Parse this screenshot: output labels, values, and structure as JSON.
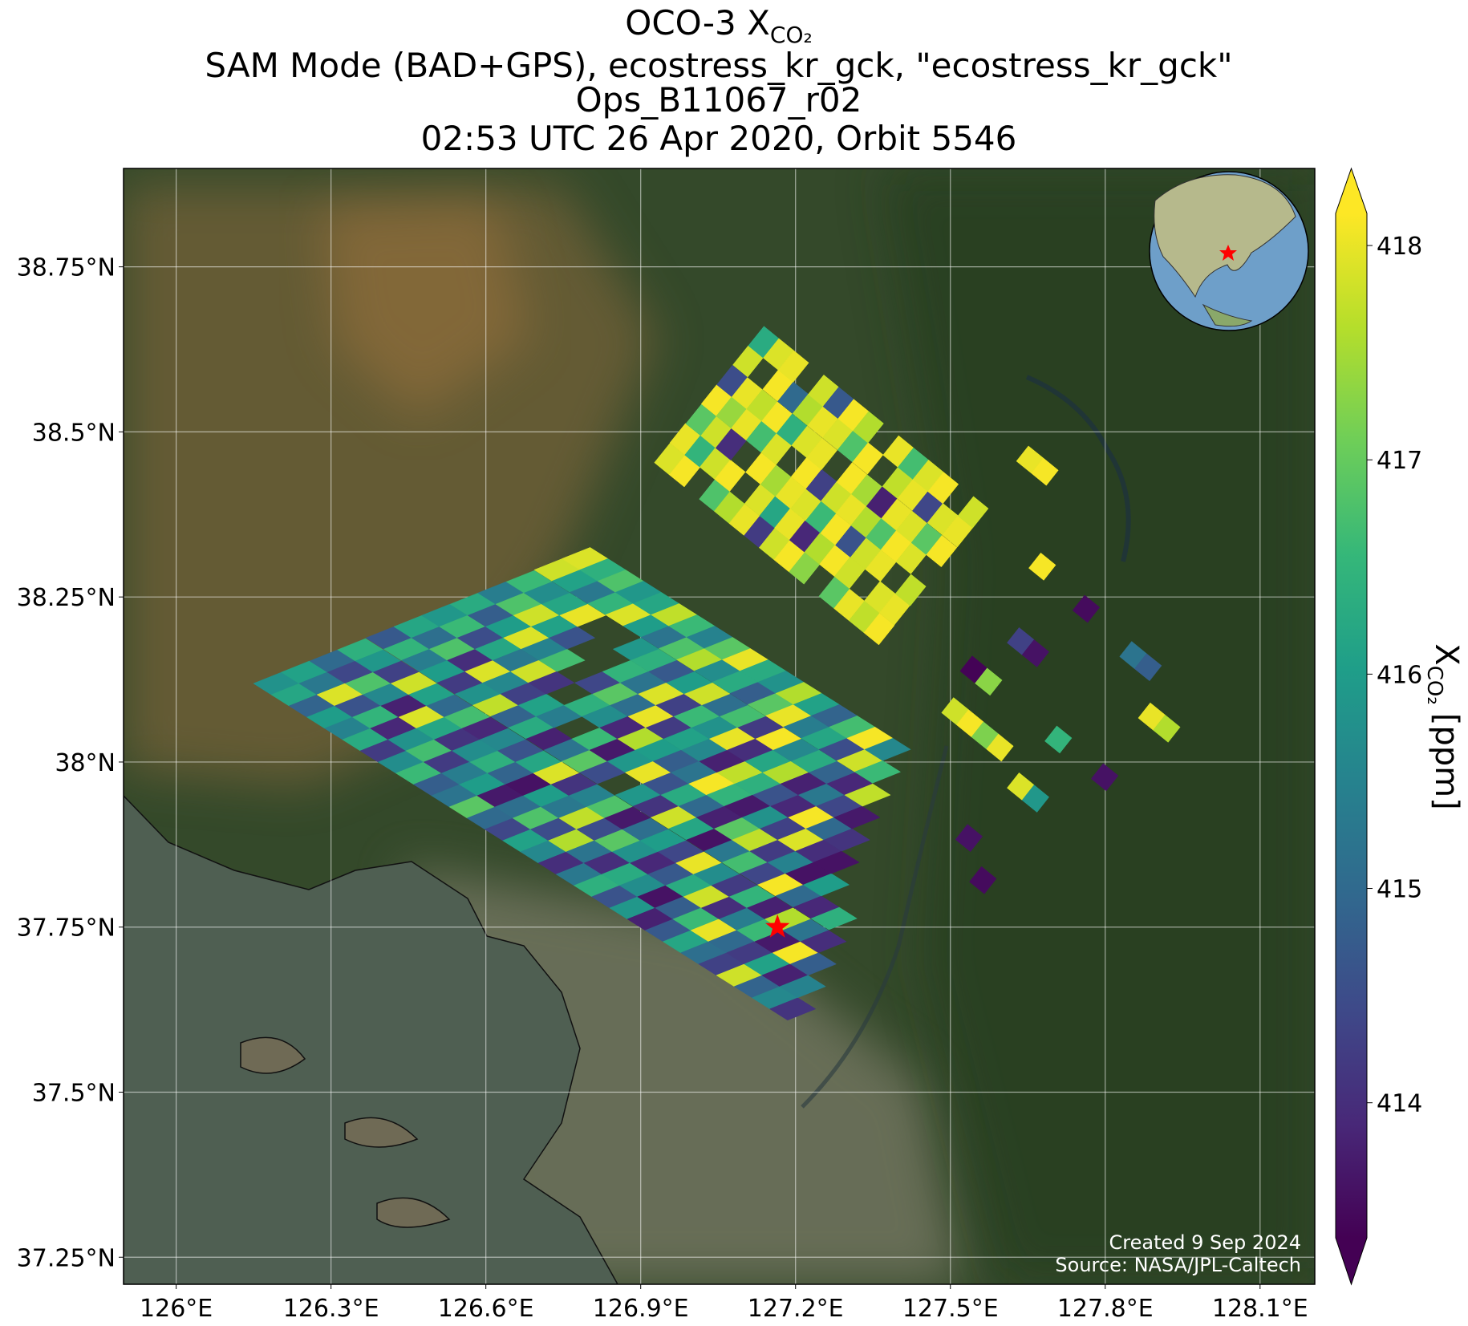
{
  "chart_data": {
    "type": "map",
    "title": "OCO-3 X",
    "title_subscript": "CO₂",
    "subtitle": [
      "SAM Mode (BAD+GPS), ecostress_kr_gck, \"ecostress_kr_gck\"",
      "Ops_B11067_r02",
      "02:53 UTC 26 Apr 2020, Orbit 5546"
    ],
    "xlim": [
      125.898,
      128.206
    ],
    "ylim": [
      37.209,
      38.899
    ],
    "xticks": [
      {
        "value": 126,
        "label": "126°E"
      },
      {
        "value": 126.3,
        "label": "126.3°E"
      },
      {
        "value": 126.6,
        "label": "126.6°E"
      },
      {
        "value": 126.9,
        "label": "126.9°E"
      },
      {
        "value": 127.2,
        "label": "127.2°E"
      },
      {
        "value": 127.5,
        "label": "127.5°E"
      },
      {
        "value": 127.8,
        "label": "127.8°E"
      },
      {
        "value": 128.1,
        "label": "128.1°E"
      }
    ],
    "yticks": [
      {
        "value": 37.25,
        "label": "37.25°N"
      },
      {
        "value": 37.5,
        "label": "37.5°N"
      },
      {
        "value": 37.75,
        "label": "37.75°N"
      },
      {
        "value": 38,
        "label": "38°N"
      },
      {
        "value": 38.25,
        "label": "38.25°N"
      },
      {
        "value": 38.5,
        "label": "38.5°N"
      },
      {
        "value": 38.75,
        "label": "38.75°N"
      }
    ],
    "grid": true,
    "colorbar": {
      "symbol": "X",
      "subscript": "CO₂",
      "unit": "[ppm]",
      "colormap": "viridis",
      "clim": [
        413.37,
        418.15
      ],
      "ticks": [
        414,
        415,
        416,
        417,
        418
      ]
    },
    "target": {
      "lon": 127.165,
      "lat": 37.75,
      "color": "#ff0000"
    },
    "annotations": [
      "Created 9 Sep 2024",
      "Source: NASA/JPL-Caltech"
    ],
    "swaths": [
      {
        "step": [
          0.0345,
          -0.017
        ],
        "rows": [
          {
            "lon": 126.194,
            "lat": 38.119,
            "values": [
              415.8,
              416.2,
              414.9,
              416.0,
              415.5,
              416.3,
              414.2,
              415.7,
              416.6,
              414.8,
              415.2,
              416.9,
              415.0,
              414.4,
              416.1,
              415.6,
              414.0,
              415.3,
              416.4,
              414.6,
              415.9,
              413.8,
              414.7,
              416.2,
              415.1,
              414.3,
              417.8,
              414.9,
              415.6,
              414.1
            ]
          },
          {
            "lon": 126.248,
            "lat": 38.136,
            "values": [
              416.1,
              415.3,
              417.9,
              414.6,
              416.5,
              413.9,
              415.8,
              416.7,
              414.2,
              415.4,
              416.0,
              413.7,
              415.1,
              416.8,
              414.5,
              417.6,
              415.2,
              414.0,
              416.3,
              415.7,
              413.6,
              414.8,
              416.6,
              418.0,
              415.0,
              414.2,
              416.1,
              413.8,
              415.5
            ]
          },
          {
            "lon": 126.303,
            "lat": 38.153,
            "values": [
              415.0,
              414.4,
              416.8,
              415.6,
              413.8,
              417.9,
              416.2,
              414.1,
              415.7,
              416.4,
              414.9,
              413.6,
              416.0,
              415.3,
              417.7,
              414.5,
              416.9,
              415.8,
              413.9,
              414.7,
              416.3,
              417.8,
              414.0,
              415.4,
              416.6,
              413.7,
              418.1,
              414.8
            ]
          },
          {
            "lon": 126.357,
            "lat": 38.17,
            "values": [
              416.4,
              415.9,
              414.3,
              417.8,
              416.1,
              415.0,
              416.7,
              413.9,
              415.6,
              414.6,
              416.2,
              417.9,
              414.1,
              415.5,
              416.8,
              413.7,
              415.1,
              416.0,
              414.4,
              418.0,
              415.7,
              414.2,
              416.5,
              413.8,
              417.6,
              415.2,
              414.0
            ]
          },
          {
            "lon": 126.412,
            "lat": 38.188,
            "values": [
              414.7,
              416.5,
              415.4,
              416.0,
              414.2,
              415.8,
              417.7,
              414.9,
              416.3,
              413.8,
              415.2,
              416.9,
              414.5,
              null,
              415.9,
              414.1,
              417.8,
              416.2,
              413.6,
              415.3,
              416.7,
              414.4,
              418.1,
              415.0,
              413.9,
              416.4
            ]
          },
          {
            "lon": 126.466,
            "lat": 38.205,
            "values": [
              416.2,
              415.1,
              416.8,
              414.0,
              417.9,
              415.6,
              414.3,
              416.1,
              415.4,
              null,
              416.6,
              413.7,
              415.9,
              418.0,
              414.6,
              416.3,
              415.0,
              413.8,
              416.9,
              417.7,
              414.2,
              415.5,
              413.6,
              416.0
            ]
          },
          {
            "lon": 126.52,
            "lat": 38.222,
            "values": [
              415.9,
              416.6,
              414.5,
              416.2,
              415.3,
              417.8,
              414.1,
              null,
              416.4,
              415.7,
              413.9,
              417.6,
              416.0,
              414.8,
              415.2,
              418.1,
              416.5,
              413.7,
              415.8,
              414.3,
              417.9,
              414.0,
              413.6
            ]
          },
          {
            "lon": 126.575,
            "lat": 38.239,
            "values": [
              416.3,
              414.8,
              416.0,
              417.9,
              415.5,
              416.7,
              null,
              414.4,
              416.9,
              415.1,
              418.0,
              414.2,
              416.1,
              415.6,
              413.8,
              417.7,
              416.4,
              414.6,
              413.9,
              418.1,
              415.0,
              414.1
            ]
          },
          {
            "lon": 126.629,
            "lat": 38.256,
            "values": [
              415.4,
              416.8,
              417.8,
              416.1,
              414.6,
              null,
              null,
              416.5,
              415.2,
              417.9,
              414.3,
              416.6,
              415.8,
              418.0,
              414.0,
              416.2,
              417.6,
              413.8,
              415.3,
              414.4,
              413.7
            ]
          },
          {
            "lon": 126.684,
            "lat": 38.273,
            "values": [
              416.6,
              415.7,
              416.2,
              418.0,
              null,
              null,
              415.9,
              416.4,
              414.7,
              416.0,
              417.8,
              415.1,
              416.7,
              414.2,
              418.1,
              415.6,
              416.3,
              414.9,
              413.9,
              417.7
            ]
          },
          {
            "lon": 126.738,
            "lat": 38.291,
            "values": [
              417.8,
              416.1,
              415.3,
              416.5,
              417.9,
              416.0,
              415.2,
              416.8,
              417.6,
              415.7,
              416.3,
              414.8,
              416.9,
              418.0,
              415.4,
              416.2,
              414.5,
              417.8,
              416.6
            ]
          },
          {
            "lon": 126.792,
            "lat": 38.308,
            "values": [
              417.9,
              416.4,
              416.8,
              415.9,
              416.2,
              417.7,
              416.6,
              415.5,
              416.9,
              418.0,
              416.3,
              415.8,
              417.6,
              416.1,
              414.9,
              416.7,
              418.1,
              415.6
            ]
          }
        ]
      },
      {
        "step": [
          0.029,
          -0.0184
        ],
        "rows": [
          {
            "lon": 126.956,
            "lat": 38.459,
            "values": [
              417.9,
              418.1,
              null,
              416.8,
              417.6,
              418.0,
              414.2,
              417.8,
              418.1,
              417.3,
              null,
              416.9,
              418.0,
              417.7,
              418.1
            ]
          },
          {
            "lon": 126.986,
            "lat": 38.489,
            "values": [
              418.0,
              416.5,
              417.8,
              418.1,
              null,
              417.9,
              416.2,
              418.0,
              413.9,
              417.6,
              418.1,
              417.8,
              null,
              417.9,
              418.0
            ]
          },
          {
            "lon": 127.017,
            "lat": 38.518,
            "values": [
              416.9,
              417.8,
              414.0,
              null,
              418.1,
              417.5,
              418.0,
              417.9,
              416.6,
              418.1,
              414.6,
              417.8,
              418.0,
              null,
              417.7
            ]
          },
          {
            "lon": 127.047,
            "lat": 38.548,
            "values": [
              418.1,
              417.4,
              418.0,
              416.7,
              417.9,
              null,
              418.1,
              414.3,
              417.8,
              418.0,
              417.6,
              416.8,
              418.1,
              417.9,
              null
            ]
          },
          {
            "lon": 127.077,
            "lat": 38.577,
            "values": [
              414.5,
              418.0,
              417.7,
              418.1,
              416.4,
              417.9,
              418.0,
              null,
              418.1,
              417.5,
              413.8,
              418.0,
              417.9,
              416.9,
              418.1
            ]
          },
          {
            "lon": 127.108,
            "lat": 38.607,
            "values": [
              417.8,
              null,
              418.1,
              415.0,
              417.6,
              418.0,
              417.9,
              416.8,
              418.1,
              null,
              417.7,
              418.0,
              414.4,
              417.9,
              418.0
            ]
          },
          {
            "lon": 127.138,
            "lat": 38.636,
            "values": [
              416.3,
              417.9,
              418.0,
              null,
              417.8,
              414.7,
              418.1,
              417.6,
              null,
              418.0,
              416.7,
              417.9,
              418.1,
              null,
              417.8
            ]
          }
        ]
      },
      {
        "step": [
          0.029,
          -0.0184
        ],
        "rows": [
          {
            "lon": 127.654,
            "lat": 38.458,
            "values": [
              418.0,
              418.1
            ]
          },
          {
            "lon": 127.678,
            "lat": 38.296,
            "values": [
              418.1
            ]
          },
          {
            "lon": 127.636,
            "lat": 38.183,
            "values": [
              414.3,
              413.6
            ]
          },
          {
            "lon": 127.763,
            "lat": 38.232,
            "values": [
              413.5
            ]
          },
          {
            "lon": 127.854,
            "lat": 38.162,
            "values": [
              415.2,
              414.8
            ]
          },
          {
            "lon": 127.89,
            "lat": 38.069,
            "values": [
              418.0,
              417.6
            ]
          },
          {
            "lon": 127.799,
            "lat": 37.977,
            "values": [
              413.6
            ]
          },
          {
            "lon": 127.545,
            "lat": 38.14,
            "values": [
              413.4,
              417.3
            ]
          },
          {
            "lon": 127.509,
            "lat": 38.077,
            "values": [
              417.8,
              418.1,
              417.2,
              418.0
            ]
          },
          {
            "lon": 127.636,
            "lat": 37.963,
            "values": [
              417.9,
              415.9
            ]
          },
          {
            "lon": 127.563,
            "lat": 37.821,
            "values": [
              413.5
            ]
          },
          {
            "lon": 127.536,
            "lat": 37.885,
            "values": [
              413.6
            ]
          },
          {
            "lon": 127.709,
            "lat": 38.034,
            "values": [
              416.5
            ]
          }
        ]
      }
    ]
  }
}
